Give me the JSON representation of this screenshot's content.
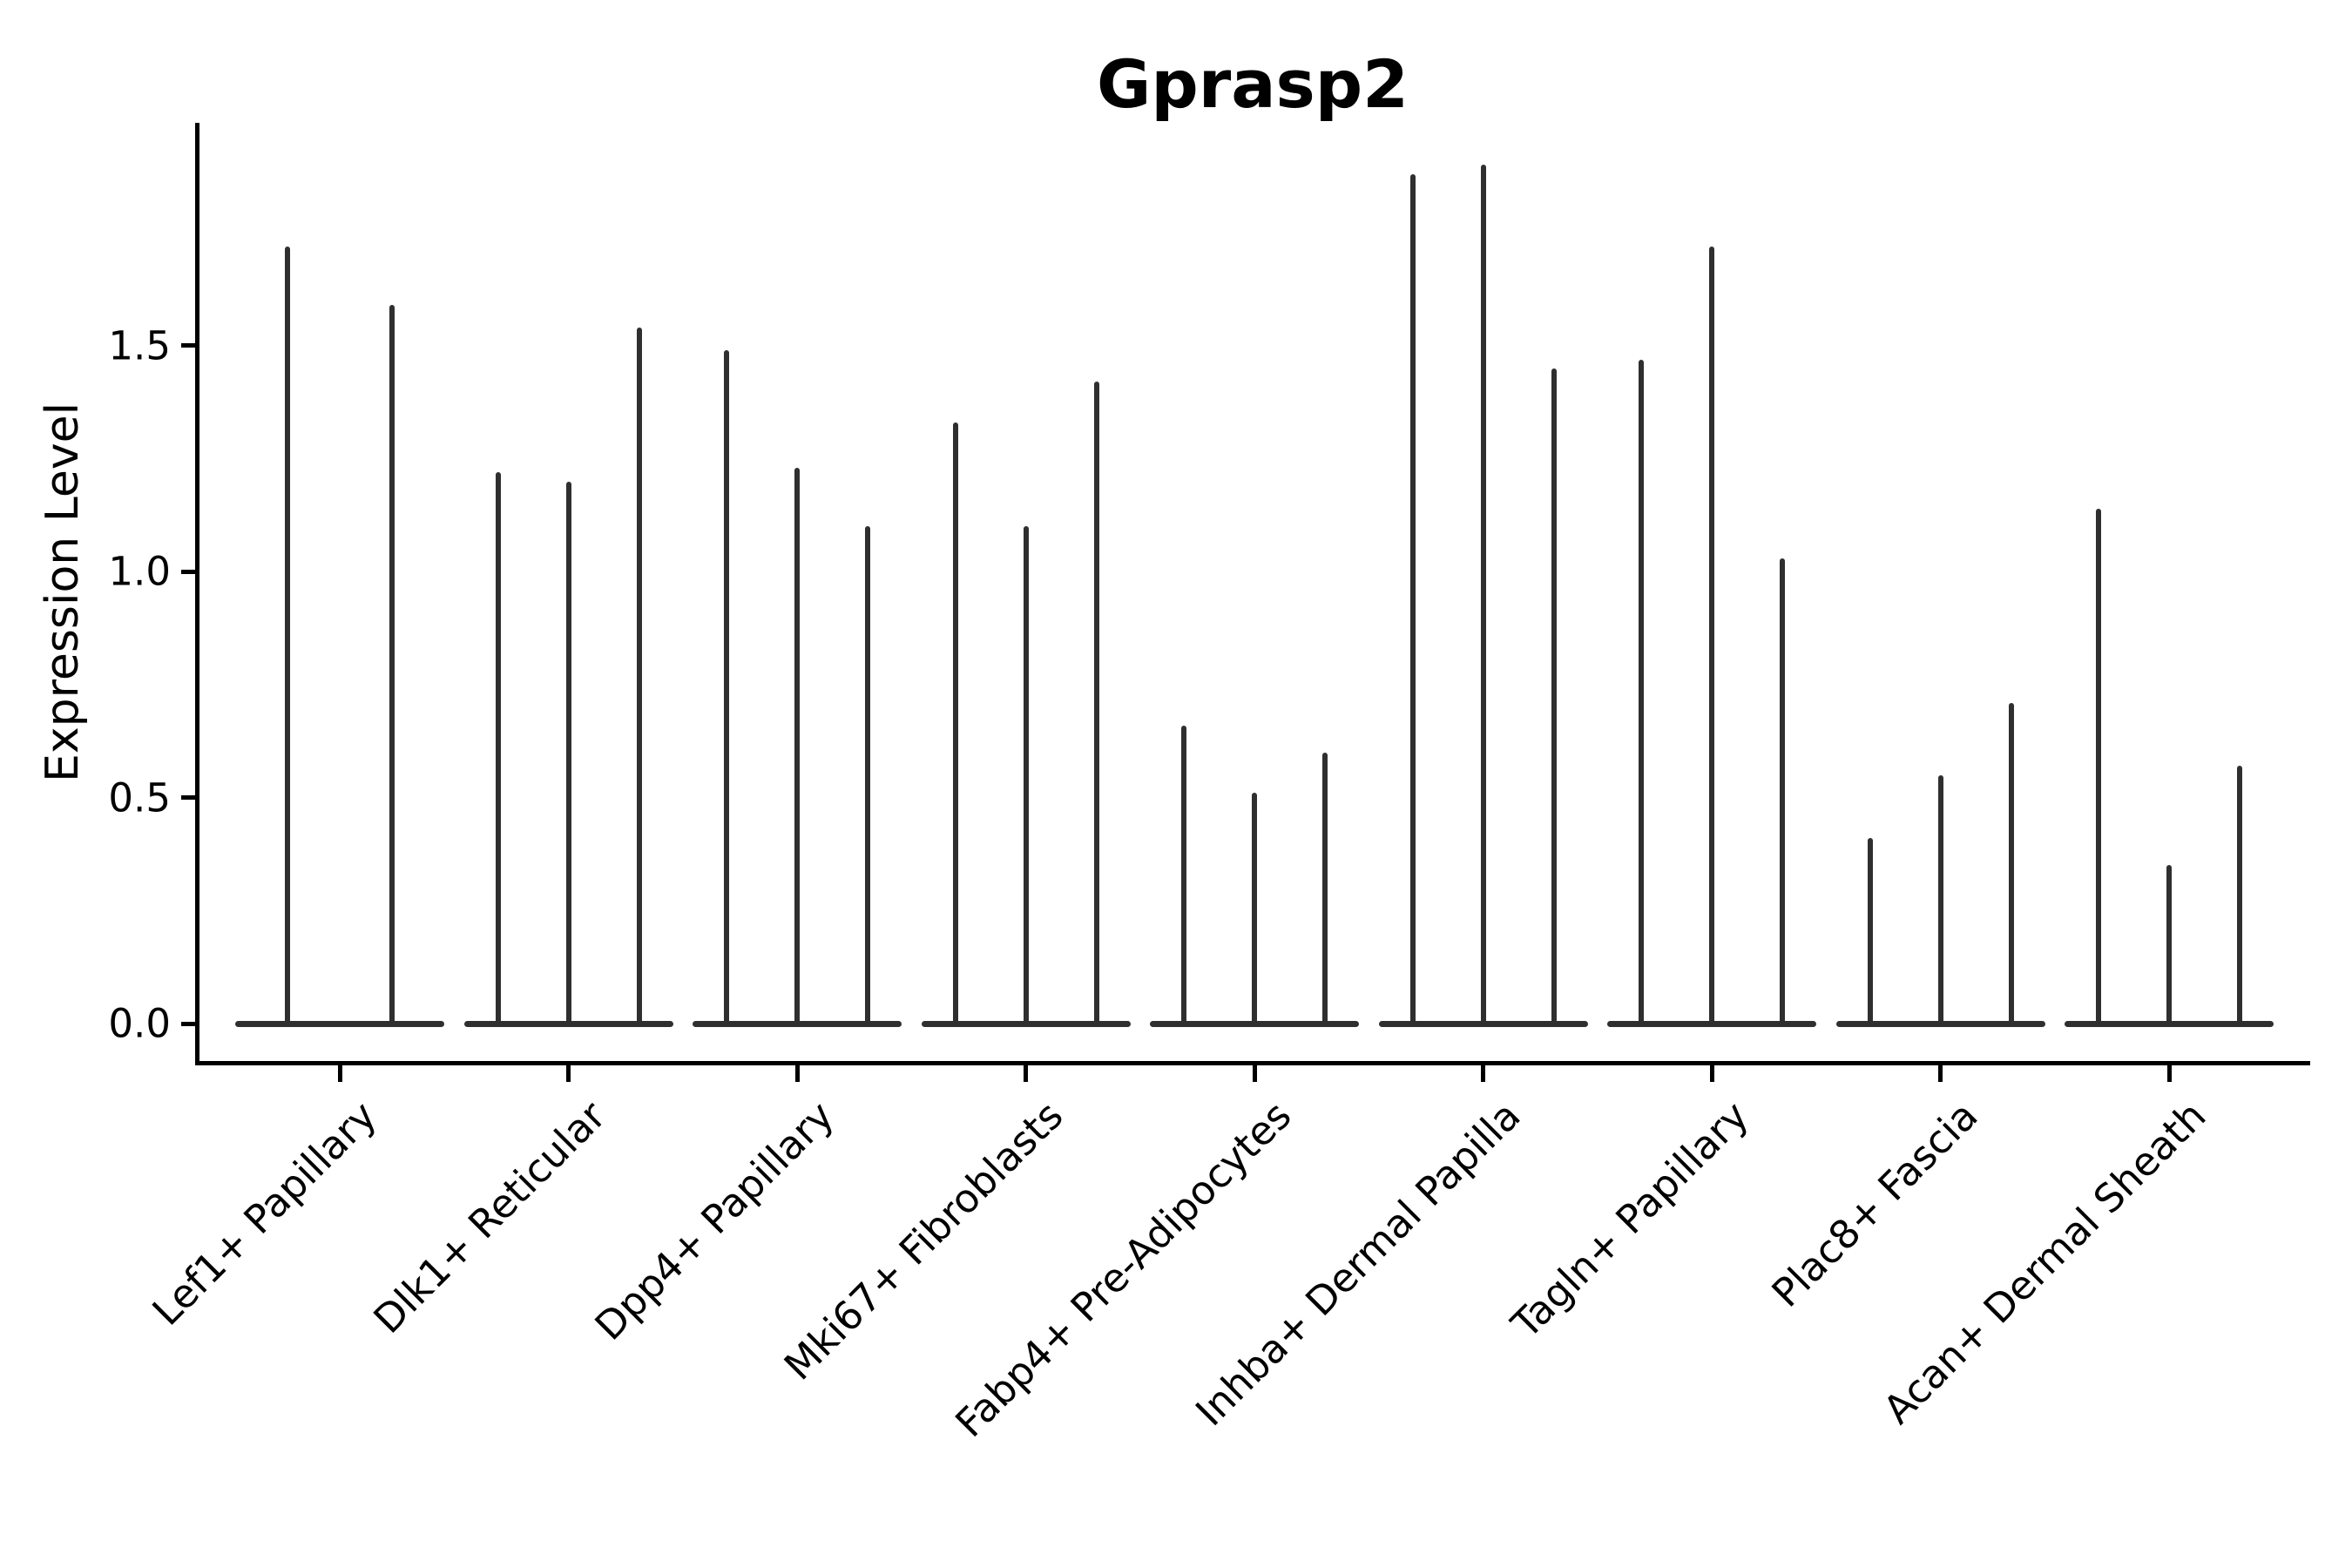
{
  "title": "Gprasp2",
  "y_axis": {
    "label": "Expression Level",
    "tick_labels": [
      "0.0",
      "0.5",
      "1.0",
      "1.5"
    ]
  },
  "colors": {
    "background": "#ffffff",
    "violin": "#2f2f2f",
    "axis": "#000000",
    "text": "#000000"
  },
  "chart_data": {
    "type": "violin",
    "title": "Gprasp2",
    "xlabel": "",
    "ylabel": "Expression Level",
    "ylim": [
      -0.09,
      2.0
    ],
    "yticks": [
      0.0,
      0.5,
      1.0,
      1.5
    ],
    "ytick_labels": [
      "0.0",
      "0.5",
      "1.0",
      "1.5"
    ],
    "grid": false,
    "legend": "none",
    "description": "Thin spike-shaped violins; each category contains 2-3 violins rising from a flat base at expression 0. Values below are the peak (max) expression level of each violin, left to right.",
    "categories": [
      "Lef1+ Papillary",
      "Dlk1+ Reticular",
      "Dpp4+ Papillary",
      "Mki67+ Fibroblasts",
      "Fabp4+ Pre-Adipocytes",
      "Inhba+ Dermal Papilla",
      "Tagln+ Papillary",
      "Plac8+ Fascia",
      "Acan+ Dermal Sheath"
    ],
    "series": [
      {
        "category": "Lef1+ Papillary",
        "violin_peaks": [
          1.72,
          1.59
        ]
      },
      {
        "category": "Dlk1+ Reticular",
        "violin_peaks": [
          1.22,
          1.2,
          1.54
        ]
      },
      {
        "category": "Dpp4+ Papillary",
        "violin_peaks": [
          1.49,
          1.23,
          1.1
        ]
      },
      {
        "category": "Mki67+ Fibroblasts",
        "violin_peaks": [
          1.33,
          1.1,
          1.42
        ]
      },
      {
        "category": "Fabp4+ Pre-Adipocytes",
        "violin_peaks": [
          0.66,
          0.51,
          0.6
        ]
      },
      {
        "category": "Inhba+ Dermal Papilla",
        "violin_peaks": [
          1.88,
          1.9,
          1.45
        ]
      },
      {
        "category": "Tagln+ Papillary",
        "violin_peaks": [
          1.47,
          1.72,
          1.03
        ]
      },
      {
        "category": "Plac8+ Fascia",
        "violin_peaks": [
          0.41,
          0.55,
          0.71
        ]
      },
      {
        "category": "Acan+ Dermal Sheath",
        "violin_peaks": [
          1.14,
          0.35,
          0.57
        ]
      }
    ]
  }
}
